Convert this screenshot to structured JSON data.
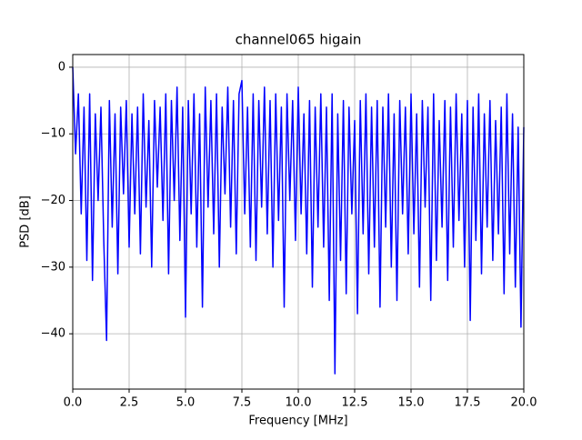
{
  "chart_data": {
    "type": "line",
    "title": "channel065 higain",
    "xlabel": "Frequency [MHz]",
    "ylabel": "PSD [dB]",
    "x": [
      0,
      0.125,
      0.25,
      0.375,
      0.5,
      0.625,
      0.75,
      0.875,
      1,
      1.125,
      1.25,
      1.375,
      1.5,
      1.625,
      1.75,
      1.875,
      2,
      2.125,
      2.25,
      2.375,
      2.5,
      2.625,
      2.75,
      2.875,
      3,
      3.125,
      3.25,
      3.375,
      3.5,
      3.625,
      3.75,
      3.875,
      4,
      4.125,
      4.25,
      4.375,
      4.5,
      4.625,
      4.75,
      4.875,
      5,
      5.125,
      5.25,
      5.375,
      5.5,
      5.625,
      5.75,
      5.875,
      6,
      6.125,
      6.25,
      6.375,
      6.5,
      6.625,
      6.75,
      6.875,
      7,
      7.125,
      7.25,
      7.375,
      7.5,
      7.625,
      7.75,
      7.875,
      8,
      8.125,
      8.25,
      8.375,
      8.5,
      8.625,
      8.75,
      8.875,
      9,
      9.125,
      9.25,
      9.375,
      9.5,
      9.625,
      9.75,
      9.875,
      10,
      10.125,
      10.25,
      10.375,
      10.5,
      10.625,
      10.75,
      10.875,
      11,
      11.125,
      11.25,
      11.375,
      11.5,
      11.625,
      11.75,
      11.875,
      12,
      12.125,
      12.25,
      12.375,
      12.5,
      12.625,
      12.75,
      12.875,
      13,
      13.125,
      13.25,
      13.375,
      13.5,
      13.625,
      13.75,
      13.875,
      14,
      14.125,
      14.25,
      14.375,
      14.5,
      14.625,
      14.75,
      14.875,
      15,
      15.125,
      15.25,
      15.375,
      15.5,
      15.625,
      15.75,
      15.875,
      16,
      16.125,
      16.25,
      16.375,
      16.5,
      16.625,
      16.75,
      16.875,
      17,
      17.125,
      17.25,
      17.375,
      17.5,
      17.625,
      17.75,
      17.875,
      18,
      18.125,
      18.25,
      18.375,
      18.5,
      18.625,
      18.75,
      18.875,
      19,
      19.125,
      19.25,
      19.375,
      19.5,
      19.625,
      19.75,
      19.875,
      20
    ],
    "series": [
      {
        "color": "#0000ff",
        "values": [
          0,
          -13,
          -4,
          -22,
          -6,
          -29,
          -4,
          -32,
          -7,
          -20,
          -6,
          -26,
          -41,
          -5,
          -24,
          -7,
          -31,
          -6,
          -19,
          -5,
          -27,
          -7,
          -22,
          -6,
          -28,
          -4,
          -21,
          -8,
          -30,
          -5,
          -18,
          -6,
          -23,
          -4,
          -31,
          -5,
          -20,
          -3,
          -26,
          -6,
          -37.5,
          -5,
          -22,
          -4,
          -27,
          -7,
          -36,
          -3,
          -21,
          -5,
          -25,
          -4,
          -30,
          -6,
          -19,
          -3,
          -24,
          -5,
          -28,
          -4,
          -2,
          -22,
          -6,
          -27,
          -4,
          -29,
          -5,
          -21,
          -3,
          -25,
          -5,
          -30,
          -4,
          -23,
          -6,
          -36,
          -4,
          -20,
          -5,
          -26,
          -3,
          -22,
          -7,
          -28,
          -5,
          -33,
          -6,
          -24,
          -4,
          -27,
          -6,
          -35,
          -4,
          -46,
          -7,
          -29,
          -5,
          -34,
          -6,
          -22,
          -8,
          -37,
          -5,
          -25,
          -4,
          -31,
          -6,
          -27,
          -5,
          -36,
          -6,
          -24,
          -4,
          -30,
          -7,
          -35,
          -5,
          -22,
          -6,
          -28,
          -4,
          -25,
          -7,
          -33,
          -5,
          -21,
          -6,
          -35,
          -4,
          -29,
          -8,
          -24,
          -5,
          -32,
          -6,
          -27,
          -4,
          -23,
          -7,
          -30,
          -5,
          -38,
          -6,
          -26,
          -4,
          -31,
          -7,
          -24,
          -5,
          -29,
          -8,
          -25,
          -6,
          -34,
          -4,
          -28,
          -7,
          -33,
          -9,
          -39,
          -9
        ]
      }
    ],
    "xlim": [
      0,
      20
    ],
    "ylim": [
      -48.3,
      1.9
    ],
    "xticks": [
      {
        "value": 0,
        "label": "0.0"
      },
      2.5,
      {
        "value": 5,
        "label": "5.0"
      },
      7.5,
      {
        "value": 10,
        "label": "10.0"
      },
      12.5,
      {
        "value": 15,
        "label": "15.0"
      },
      17.5,
      {
        "value": 20,
        "label": "20.0"
      }
    ],
    "yticks": [
      {
        "value": -40,
        "label": "−40"
      },
      {
        "value": -30,
        "label": "−30"
      },
      {
        "value": -20,
        "label": "−20"
      },
      {
        "value": -10,
        "label": "−10"
      },
      0
    ],
    "grid": true
  }
}
